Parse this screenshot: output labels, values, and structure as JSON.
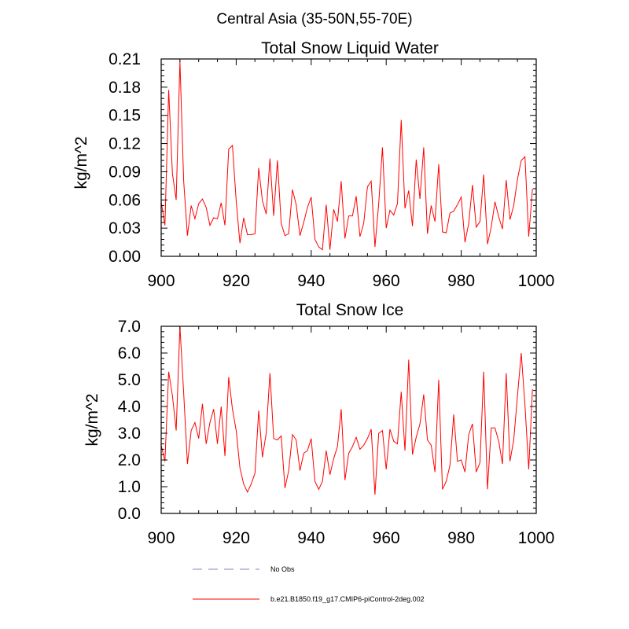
{
  "suptitle": "Central Asia (35-50N,55-70E)",
  "legend": {
    "entries": [
      {
        "label": "No Obs",
        "color": "#9a9ae0",
        "style": "dashed"
      },
      {
        "label": "b.e21.B1850.f19_g17.CMIP6-piControl-2deg.002",
        "color": "#ff0000",
        "style": "solid"
      }
    ]
  },
  "chart_data": [
    {
      "type": "line",
      "title": "Total Snow Liquid Water",
      "ylabel": "kg/m^2",
      "xlim": [
        900,
        1000
      ],
      "ylim": [
        0,
        0.21
      ],
      "xticks": [
        900,
        920,
        940,
        960,
        980,
        1000
      ],
      "xtick_labels": [
        "900",
        "920",
        "940",
        "960",
        "980",
        "1000"
      ],
      "yticks": [
        0,
        0.03,
        0.06,
        0.09,
        0.12,
        0.15,
        0.18,
        0.21
      ],
      "ytick_labels": [
        "0.00",
        "0.03",
        "0.06",
        "0.09",
        "0.12",
        "0.15",
        "0.18",
        "0.21"
      ],
      "series": [
        {
          "name": "b.e21.B1850.f19_g17.CMIP6-piControl-2deg.002",
          "color": "#ff0000",
          "x": [
            900,
            901,
            902,
            903,
            904,
            905,
            906,
            907,
            908,
            909,
            910,
            911,
            912,
            913,
            914,
            915,
            916,
            917,
            918,
            919,
            920,
            921,
            922,
            923,
            924,
            925,
            926,
            927,
            928,
            929,
            930,
            931,
            932,
            933,
            934,
            935,
            936,
            937,
            938,
            939,
            940,
            941,
            942,
            943,
            944,
            945,
            946,
            947,
            948,
            949,
            950,
            951,
            952,
            953,
            954,
            955,
            956,
            957,
            958,
            959,
            960,
            961,
            962,
            963,
            964,
            965,
            966,
            967,
            968,
            969,
            970,
            971,
            972,
            973,
            974,
            975,
            976,
            977,
            978,
            979,
            980,
            981,
            982,
            983,
            984,
            985,
            986,
            987,
            988,
            989,
            990,
            991,
            992,
            993,
            994,
            995,
            996,
            997,
            998,
            999
          ],
          "values": [
            0.058,
            0.033,
            0.177,
            0.088,
            0.06,
            0.208,
            0.08,
            0.022,
            0.054,
            0.04,
            0.056,
            0.061,
            0.052,
            0.033,
            0.041,
            0.04,
            0.057,
            0.033,
            0.114,
            0.118,
            0.059,
            0.014,
            0.041,
            0.023,
            0.023,
            0.024,
            0.094,
            0.059,
            0.045,
            0.104,
            0.043,
            0.102,
            0.035,
            0.022,
            0.024,
            0.071,
            0.055,
            0.022,
            0.036,
            0.052,
            0.063,
            0.018,
            0.01,
            0.007,
            0.055,
            0.007,
            0.05,
            0.037,
            0.08,
            0.019,
            0.043,
            0.043,
            0.064,
            0.021,
            0.035,
            0.074,
            0.08,
            0.01,
            0.056,
            0.116,
            0.03,
            0.049,
            0.044,
            0.056,
            0.145,
            0.051,
            0.07,
            0.032,
            0.103,
            0.061,
            0.116,
            0.024,
            0.054,
            0.037,
            0.098,
            0.026,
            0.025,
            0.046,
            0.048,
            0.055,
            0.063,
            0.015,
            0.035,
            0.076,
            0.031,
            0.037,
            0.087,
            0.013,
            0.031,
            0.058,
            0.042,
            0.029,
            0.081,
            0.039,
            0.054,
            0.082,
            0.102,
            0.106,
            0.021,
            0.072
          ]
        }
      ]
    },
    {
      "type": "line",
      "title": "Total Snow Ice",
      "ylabel": "kg/m^2",
      "xlim": [
        900,
        1000
      ],
      "ylim": [
        0,
        7
      ],
      "xticks": [
        900,
        920,
        940,
        960,
        980,
        1000
      ],
      "xtick_labels": [
        "900",
        "920",
        "940",
        "960",
        "980",
        "1000"
      ],
      "yticks": [
        0,
        1,
        2,
        3,
        4,
        5,
        6,
        7
      ],
      "ytick_labels": [
        "0.0",
        "1.0",
        "2.0",
        "3.0",
        "4.0",
        "5.0",
        "6.0",
        "7.0"
      ],
      "series": [
        {
          "name": "b.e21.B1850.f19_g17.CMIP6-piControl-2deg.002",
          "color": "#ff0000",
          "x": [
            900,
            901,
            902,
            903,
            904,
            905,
            906,
            907,
            908,
            909,
            910,
            911,
            912,
            913,
            914,
            915,
            916,
            917,
            918,
            919,
            920,
            921,
            922,
            923,
            924,
            925,
            926,
            927,
            928,
            929,
            930,
            931,
            932,
            933,
            934,
            935,
            936,
            937,
            938,
            939,
            940,
            941,
            942,
            943,
            944,
            945,
            946,
            947,
            948,
            949,
            950,
            951,
            952,
            953,
            954,
            955,
            956,
            957,
            958,
            959,
            960,
            961,
            962,
            963,
            964,
            965,
            966,
            967,
            968,
            969,
            970,
            971,
            972,
            973,
            974,
            975,
            976,
            977,
            978,
            979,
            980,
            981,
            982,
            983,
            984,
            985,
            986,
            987,
            988,
            989,
            990,
            991,
            992,
            993,
            994,
            995,
            996,
            997,
            998,
            999
          ],
          "values": [
            2.55,
            1.95,
            5.3,
            4.4,
            3.1,
            7.0,
            4.5,
            1.85,
            3.1,
            3.4,
            2.8,
            4.1,
            2.6,
            3.4,
            3.9,
            2.6,
            4.0,
            2.15,
            5.1,
            3.9,
            3.1,
            1.7,
            1.1,
            0.8,
            1.1,
            1.5,
            3.85,
            2.1,
            3.0,
            5.25,
            2.8,
            2.75,
            2.9,
            0.95,
            1.6,
            2.95,
            2.75,
            1.6,
            2.25,
            2.35,
            2.8,
            1.2,
            0.9,
            1.2,
            2.35,
            1.45,
            2.05,
            2.5,
            3.9,
            1.25,
            2.25,
            2.5,
            2.85,
            2.4,
            2.55,
            2.8,
            3.15,
            0.7,
            3.0,
            3.1,
            1.65,
            3.15,
            2.7,
            2.6,
            4.55,
            2.35,
            5.75,
            2.2,
            2.85,
            3.35,
            4.45,
            2.75,
            2.55,
            1.55,
            5.0,
            0.9,
            1.2,
            1.8,
            3.7,
            1.95,
            2.0,
            1.55,
            2.95,
            3.35,
            1.55,
            1.9,
            5.3,
            0.9,
            3.2,
            3.2,
            2.7,
            1.85,
            5.25,
            1.95,
            2.75,
            4.4,
            6.0,
            4.05,
            1.65,
            4.65
          ]
        }
      ]
    }
  ]
}
